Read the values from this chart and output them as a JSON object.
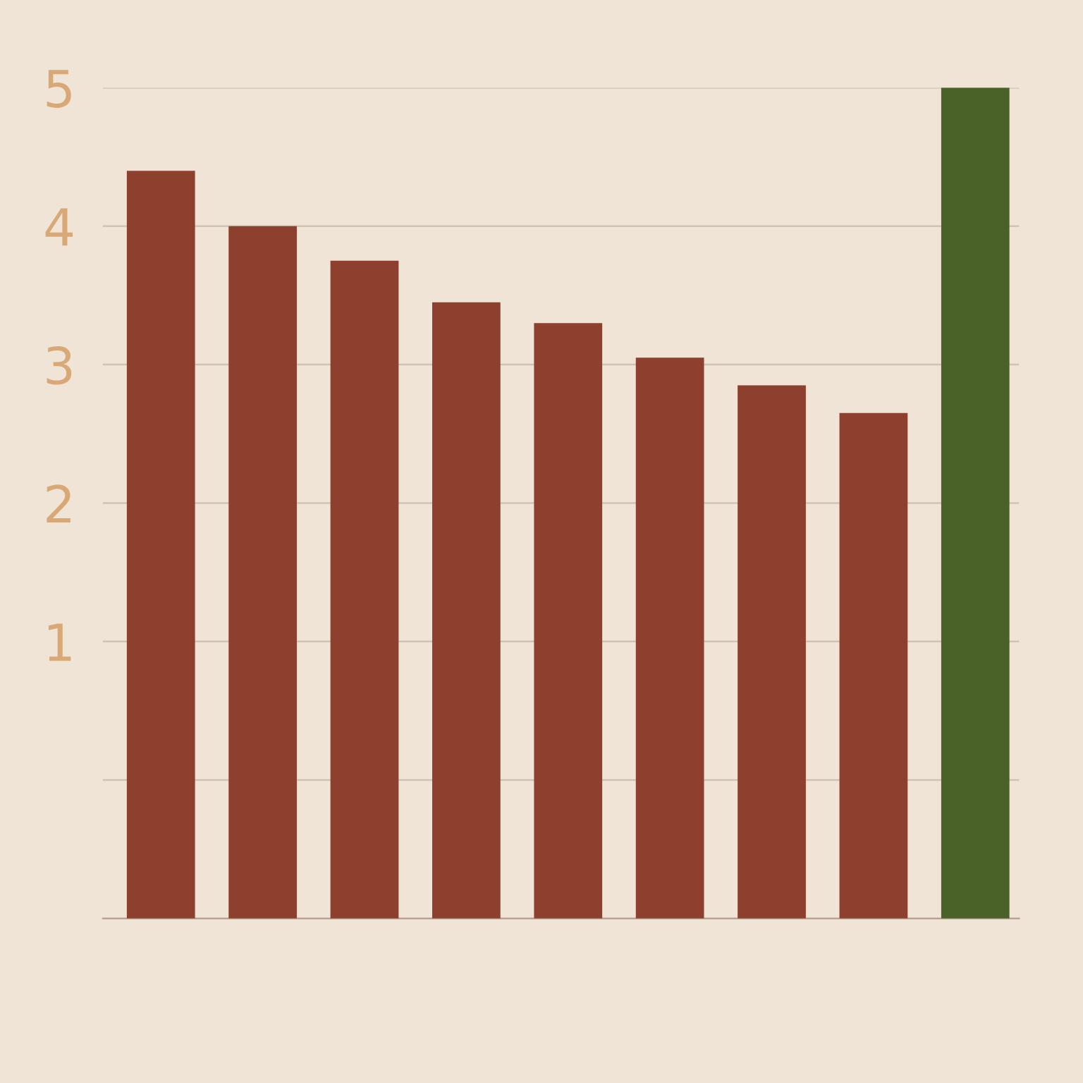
{
  "chart_data": {
    "type": "bar",
    "categories": [
      null,
      null,
      null,
      null,
      null,
      null,
      null,
      null,
      null
    ],
    "values": [
      5.4,
      5.0,
      4.75,
      4.45,
      4.3,
      4.05,
      3.85,
      3.65,
      6.0
    ],
    "base": [
      -1,
      -1,
      -1,
      -1,
      -1,
      -1,
      -1,
      -1,
      -1
    ],
    "colors": [
      "#8e402f",
      "#8e402f",
      "#8e402f",
      "#8e402f",
      "#8e402f",
      "#8e402f",
      "#8e402f",
      "#8e402f",
      "#4a6228"
    ],
    "ylim": [
      -1,
      5
    ],
    "yticks": [
      {
        "value": 0,
        "label": null
      },
      1,
      2,
      3,
      4,
      5
    ],
    "grid": "y",
    "tick_labels": "y"
  }
}
